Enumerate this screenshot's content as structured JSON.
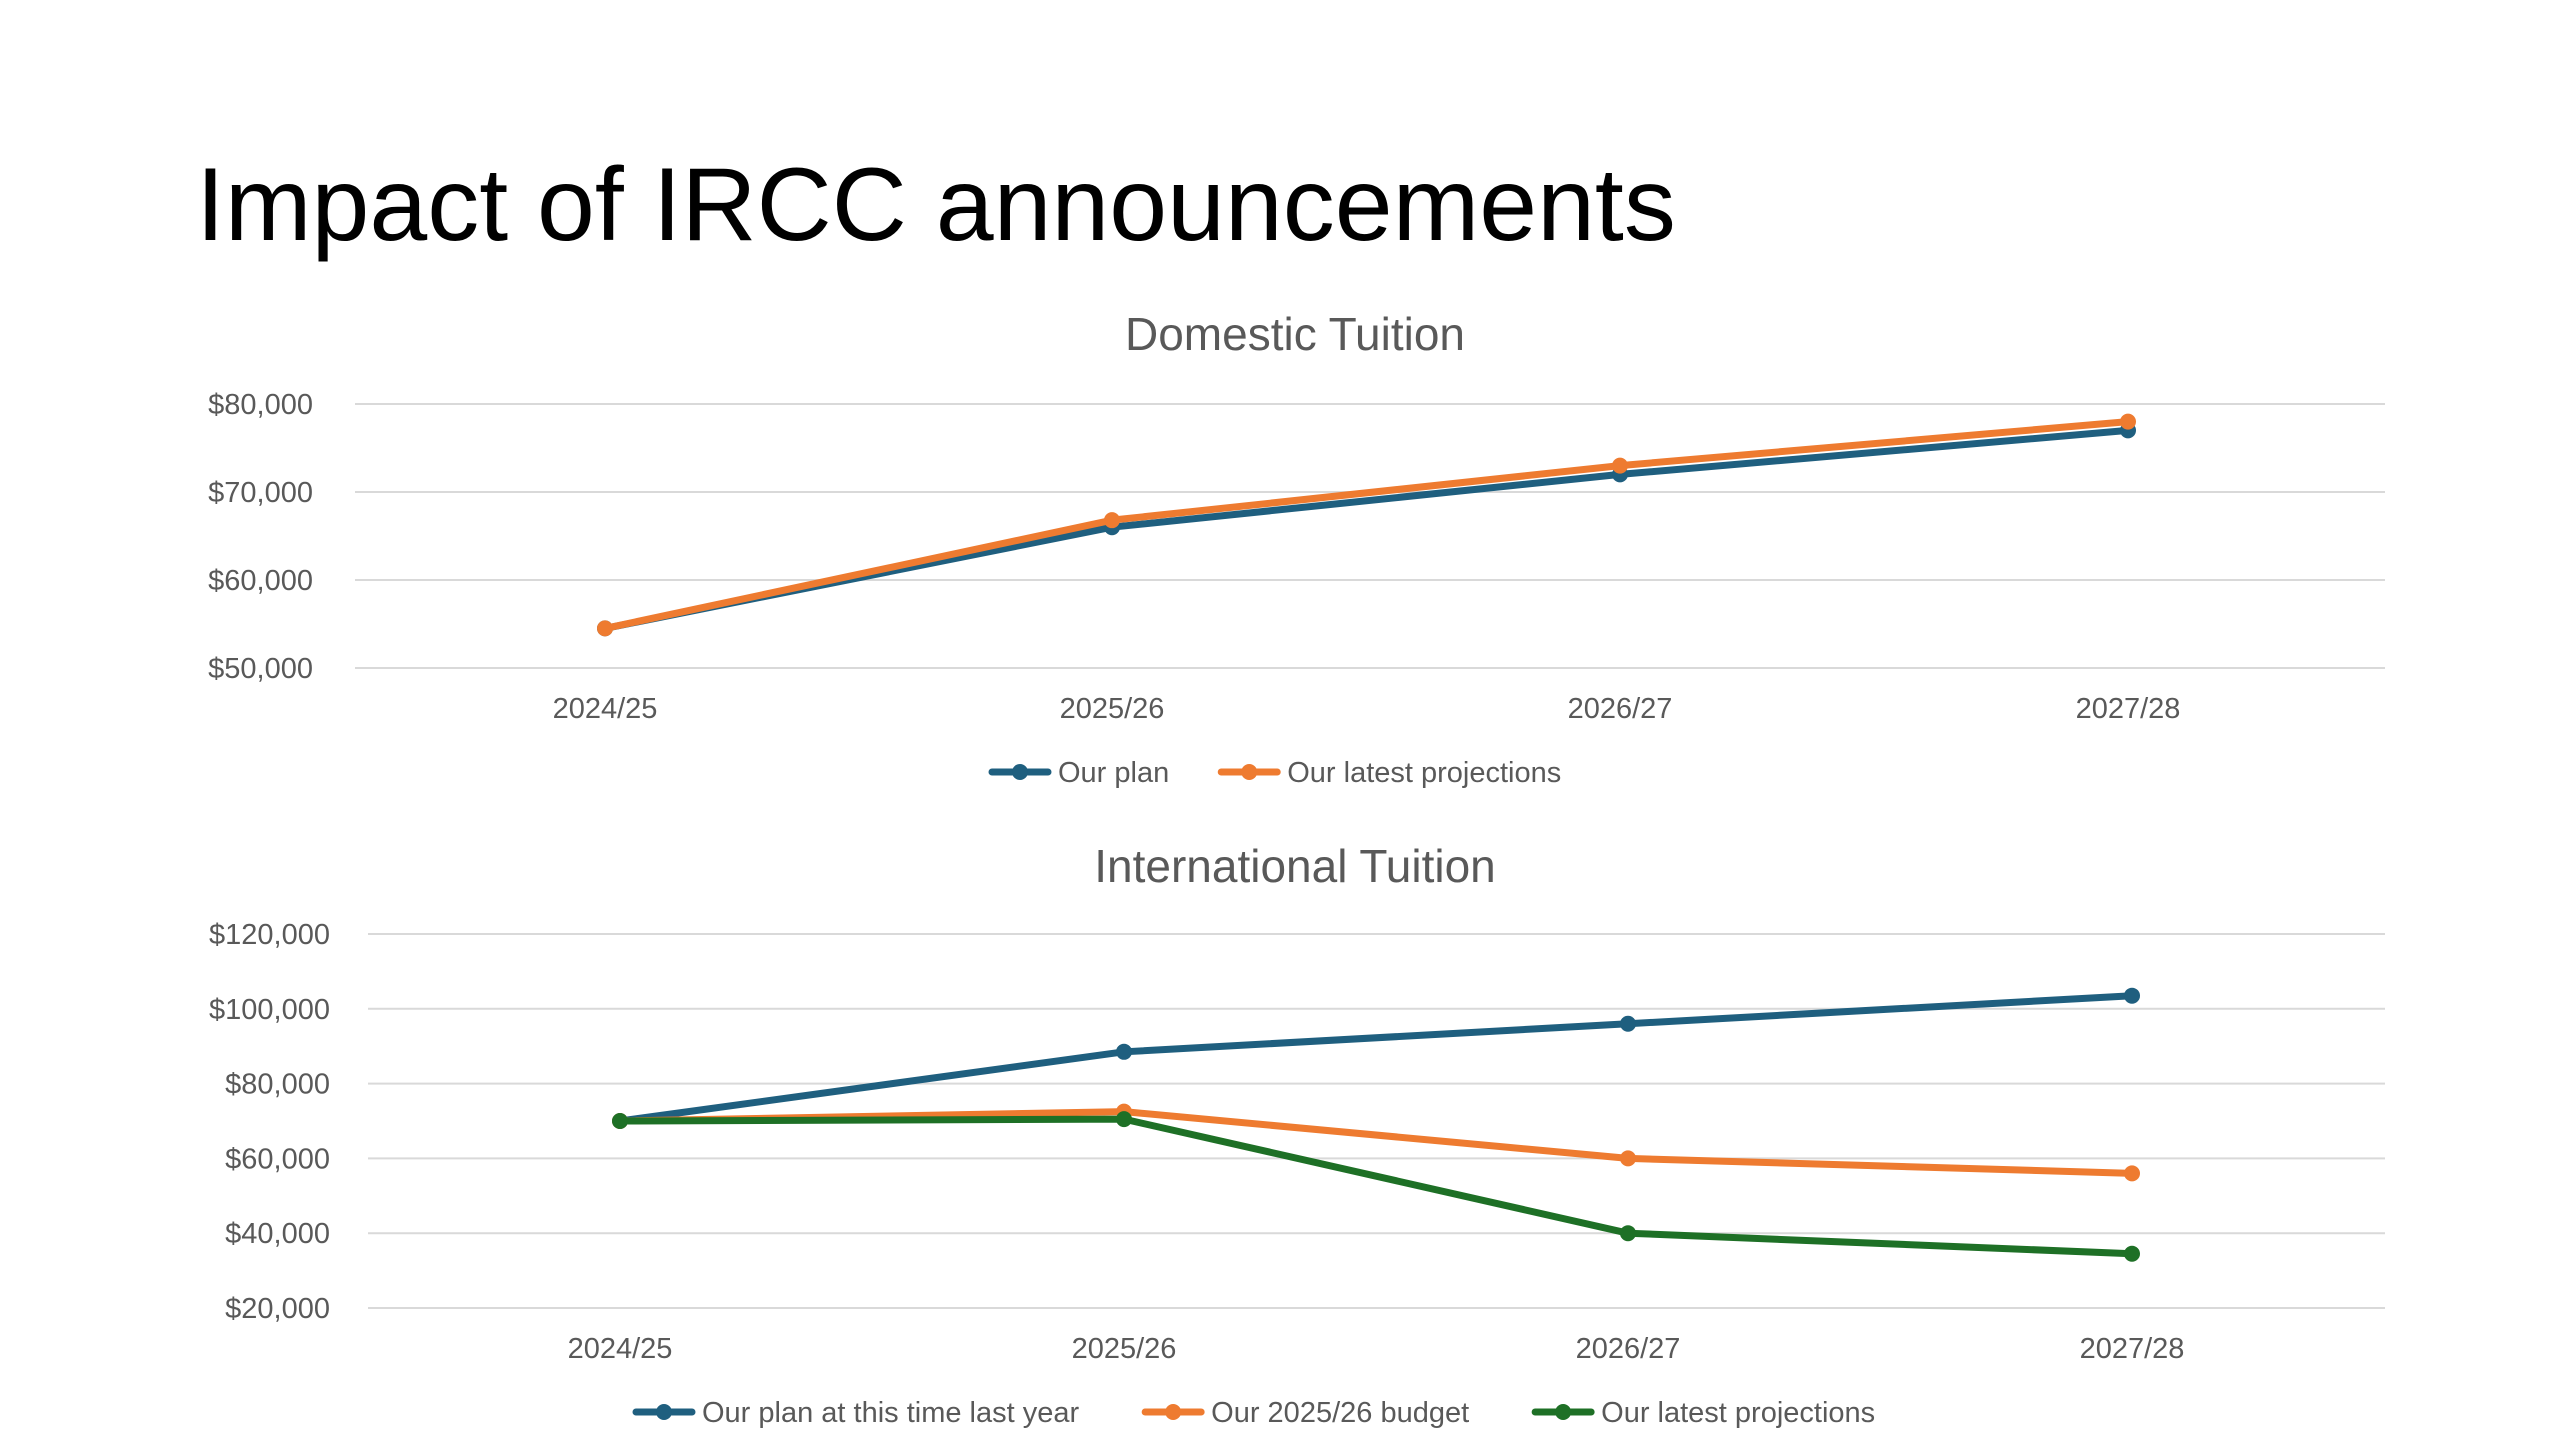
{
  "slide": {
    "title": "Impact of IRCC announcements"
  },
  "chart_data": [
    {
      "type": "line",
      "title": "Domestic Tuition",
      "categories": [
        "2024/25",
        "2025/26",
        "2026/27",
        "2027/28"
      ],
      "ylim": [
        50000,
        80000
      ],
      "yticks": [
        "$80,000",
        "$70,000",
        "$60,000",
        "$50,000"
      ],
      "ytick_values": [
        80000,
        70000,
        60000,
        50000
      ],
      "grid": true,
      "legend": "bottom",
      "series": [
        {
          "name": "Our plan",
          "color": "#1f5f7f",
          "values": [
            54500,
            66000,
            72000,
            77000
          ]
        },
        {
          "name": "Our latest projections",
          "color": "#ee7b30",
          "values": [
            54500,
            66800,
            73000,
            78000
          ]
        }
      ]
    },
    {
      "type": "line",
      "title": "International Tuition",
      "categories": [
        "2024/25",
        "2025/26",
        "2026/27",
        "2027/28"
      ],
      "ylim": [
        20000,
        120000
      ],
      "yticks": [
        "$120,000",
        "$100,000",
        "$80,000",
        "$60,000",
        "$40,000",
        "$20,000"
      ],
      "ytick_values": [
        120000,
        100000,
        80000,
        60000,
        40000,
        20000
      ],
      "grid": true,
      "legend": "bottom",
      "series": [
        {
          "name": "Our plan at this time last year",
          "color": "#1f5f7f",
          "values": [
            70000,
            88500,
            96000,
            103500
          ]
        },
        {
          "name": "Our 2025/26 budget",
          "color": "#ee7b30",
          "values": [
            70000,
            72500,
            60000,
            56000
          ]
        },
        {
          "name": "Our latest projections",
          "color": "#1e7026",
          "values": [
            70000,
            70500,
            40000,
            34500
          ]
        }
      ]
    }
  ]
}
